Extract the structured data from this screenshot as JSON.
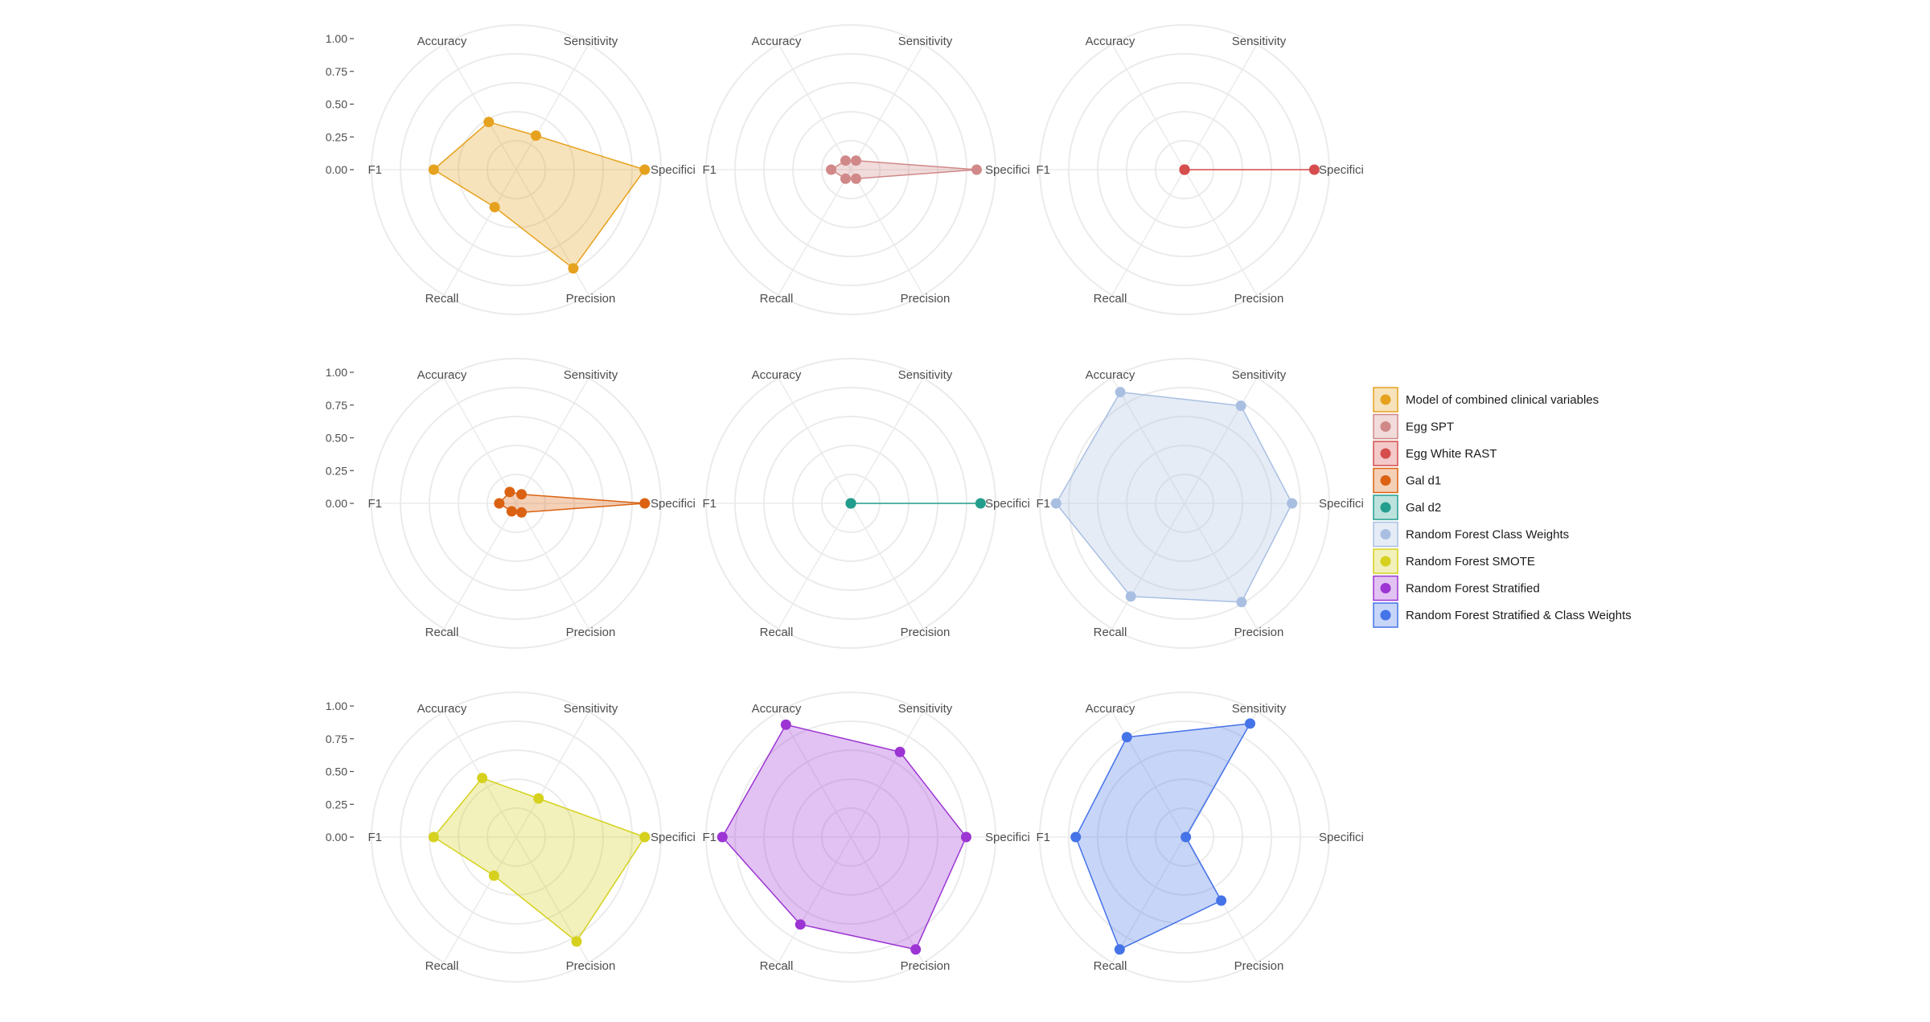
{
  "chart_data": {
    "type": "radar",
    "axes": [
      "Sensitivity",
      "Specifici",
      "Precision",
      "Recall",
      "F1",
      "Accuracy"
    ],
    "rlim": [
      0,
      1
    ],
    "radial_ticks": [
      "1.00",
      "0.75",
      "0.50",
      "0.25",
      "0.00"
    ],
    "grid": true,
    "layout": "3x3 facets",
    "legend_position": "right",
    "panels": [
      {
        "name": "Model of combined clinical variables",
        "color": "#E6A21E",
        "values": [
          0.3,
          0.98,
          0.87,
          0.33,
          0.63,
          0.42
        ]
      },
      {
        "name": "Egg SPT",
        "color": "#D08888",
        "values": [
          0.08,
          0.96,
          0.08,
          0.08,
          0.15,
          0.08
        ]
      },
      {
        "name": "Egg White RAST",
        "color": "#D64D4D",
        "values": [
          0.0,
          0.99,
          0.0,
          0.0,
          0.0,
          0.0
        ]
      },
      {
        "name": "Gal d1",
        "color": "#DB6212",
        "values": [
          0.08,
          0.98,
          0.08,
          0.07,
          0.13,
          0.1
        ]
      },
      {
        "name": "Gal d2",
        "color": "#239E8E",
        "values": [
          0.0,
          0.99,
          0.0,
          0.0,
          0.0,
          0.0
        ]
      },
      {
        "name": "Random Forest Class Weights",
        "color": "#A9BFE2",
        "values": [
          0.86,
          0.82,
          0.87,
          0.82,
          0.98,
          0.98
        ]
      },
      {
        "name": "Random Forest SMOTE",
        "color": "#D5D11E",
        "values": [
          0.34,
          0.98,
          0.92,
          0.34,
          0.63,
          0.52
        ]
      },
      {
        "name": "Random Forest Stratified",
        "color": "#9C35D3",
        "values": [
          0.75,
          0.88,
          0.99,
          0.77,
          0.98,
          0.99
        ]
      },
      {
        "name": "Random Forest Stratified & Class Weights",
        "color": "#4573E8",
        "values": [
          1.0,
          0.01,
          0.56,
          0.99,
          0.83,
          0.88
        ]
      }
    ]
  }
}
